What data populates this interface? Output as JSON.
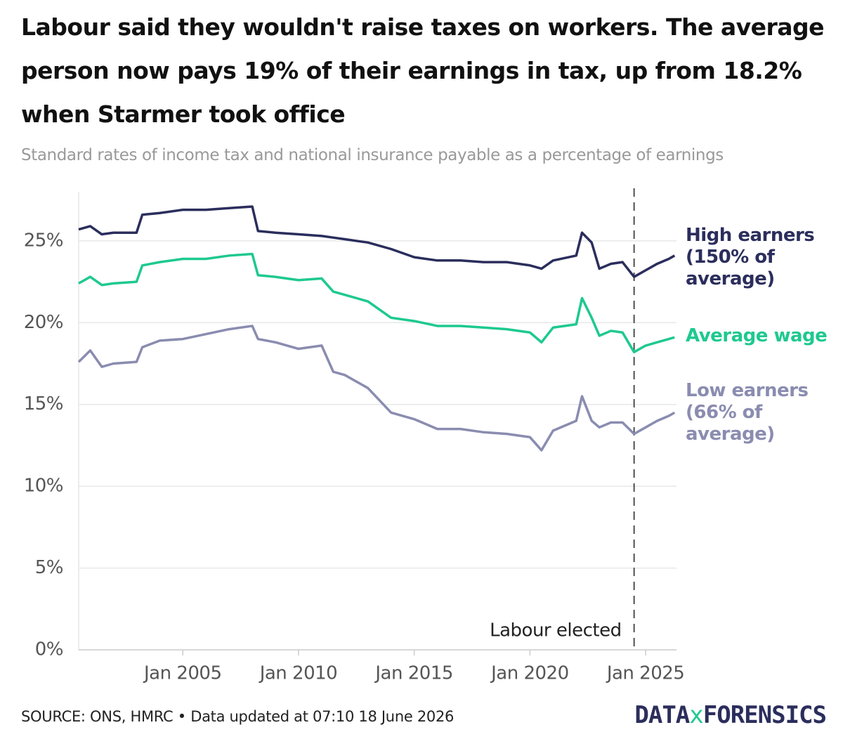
{
  "chart_data": {
    "type": "line",
    "title": "Labour said they wouldn't raise taxes on workers. The average person now pays 19% of their earnings in tax, up from 18.2% when Starmer took office",
    "subtitle": "Standard rates of income tax and national insurance payable as a percentage of earnings",
    "x": [
      "2000-07",
      "2001-01",
      "2001-07",
      "2002-01",
      "2003-01",
      "2003-04",
      "2004-01",
      "2005-01",
      "2006-01",
      "2007-01",
      "2008-01",
      "2008-04",
      "2009-01",
      "2010-01",
      "2011-01",
      "2011-07",
      "2012-01",
      "2013-01",
      "2014-01",
      "2015-01",
      "2016-01",
      "2017-01",
      "2018-01",
      "2019-01",
      "2020-01",
      "2020-07",
      "2021-01",
      "2022-01",
      "2022-04",
      "2022-09",
      "2023-01",
      "2023-07",
      "2024-01",
      "2024-07",
      "2025-01",
      "2025-07",
      "2026-01",
      "2026-04"
    ],
    "series": [
      {
        "name": "High earners (150% of average)",
        "color": "#2b2e5c",
        "values": [
          25.7,
          25.9,
          25.4,
          25.5,
          25.5,
          26.6,
          26.7,
          26.9,
          26.9,
          27.0,
          27.1,
          25.6,
          25.5,
          25.4,
          25.3,
          25.2,
          25.1,
          24.9,
          24.5,
          24.0,
          23.8,
          23.8,
          23.7,
          23.7,
          23.5,
          23.3,
          23.8,
          24.1,
          25.5,
          24.9,
          23.3,
          23.6,
          23.7,
          22.8,
          23.2,
          23.6,
          23.9,
          24.1
        ]
      },
      {
        "name": "Average wage",
        "color": "#1ec98f",
        "values": [
          22.4,
          22.8,
          22.3,
          22.4,
          22.5,
          23.5,
          23.7,
          23.9,
          23.9,
          24.1,
          24.2,
          22.9,
          22.8,
          22.6,
          22.7,
          21.9,
          21.7,
          21.3,
          20.3,
          20.1,
          19.8,
          19.8,
          19.7,
          19.6,
          19.4,
          18.8,
          19.7,
          19.9,
          21.5,
          20.3,
          19.2,
          19.5,
          19.4,
          18.2,
          18.6,
          18.8,
          19.0,
          19.1
        ]
      },
      {
        "name": "Low earners (66% of average)",
        "color": "#8a8cb0",
        "values": [
          17.6,
          18.3,
          17.3,
          17.5,
          17.6,
          18.5,
          18.9,
          19.0,
          19.3,
          19.6,
          19.8,
          19.0,
          18.8,
          18.4,
          18.6,
          17.0,
          16.8,
          16.0,
          14.5,
          14.1,
          13.5,
          13.5,
          13.3,
          13.2,
          13.0,
          12.2,
          13.4,
          14.0,
          15.5,
          14.0,
          13.6,
          13.9,
          13.9,
          13.2,
          13.6,
          14.0,
          14.3,
          14.5
        ]
      }
    ],
    "xlim": [
      "2000-07",
      "2026-05"
    ],
    "xticks": [
      {
        "value": "2005-01",
        "label": "Jan 2005"
      },
      {
        "value": "2010-01",
        "label": "Jan 2010"
      },
      {
        "value": "2015-01",
        "label": "Jan 2015"
      },
      {
        "value": "2020-01",
        "label": "Jan 2020"
      },
      {
        "value": "2025-01",
        "label": "Jan 2025"
      }
    ],
    "ylim": [
      0,
      28
    ],
    "yticks": [
      {
        "value": 0,
        "label": "0%"
      },
      {
        "value": 5,
        "label": "5%"
      },
      {
        "value": 10,
        "label": "10%"
      },
      {
        "value": 15,
        "label": "15%"
      },
      {
        "value": 20,
        "label": "20%"
      },
      {
        "value": 25,
        "label": "25%"
      }
    ],
    "grid": true,
    "annotations": [
      {
        "x": "2024-07",
        "label": "Labour elected"
      }
    ],
    "source": "SOURCE: ONS, HMRC • Data updated at 07:10 18 June 2026",
    "logo": {
      "left": "DATA",
      "mid": "x",
      "right": "FORENSICS"
    }
  }
}
